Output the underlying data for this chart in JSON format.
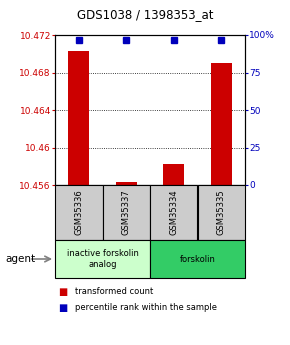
{
  "title": "GDS1038 / 1398353_at",
  "samples": [
    "GSM35336",
    "GSM35337",
    "GSM35334",
    "GSM35335"
  ],
  "red_values": [
    10.4703,
    10.4563,
    10.4582,
    10.469
  ],
  "blue_values": [
    97,
    97,
    97,
    97
  ],
  "ylim_left": [
    10.456,
    10.472
  ],
  "ylim_right": [
    0,
    100
  ],
  "yticks_left": [
    10.456,
    10.46,
    10.464,
    10.468,
    10.472
  ],
  "yticks_right": [
    0,
    25,
    50,
    75,
    100
  ],
  "ytick_labels_right": [
    "0",
    "25",
    "50",
    "75",
    "100%"
  ],
  "base_value": 10.456,
  "bar_color": "#cc0000",
  "dot_color": "#0000bb",
  "sample_box_color": "#cccccc",
  "agent_groups": [
    {
      "label": "inactive forskolin\nanalog",
      "color": "#ccffcc",
      "span": [
        0,
        2
      ]
    },
    {
      "label": "forskolin",
      "color": "#33cc66",
      "span": [
        2,
        4
      ]
    }
  ],
  "legend_items": [
    {
      "color": "#cc0000",
      "label": "transformed count"
    },
    {
      "color": "#0000bb",
      "label": "percentile rank within the sample"
    }
  ],
  "agent_label": "agent"
}
